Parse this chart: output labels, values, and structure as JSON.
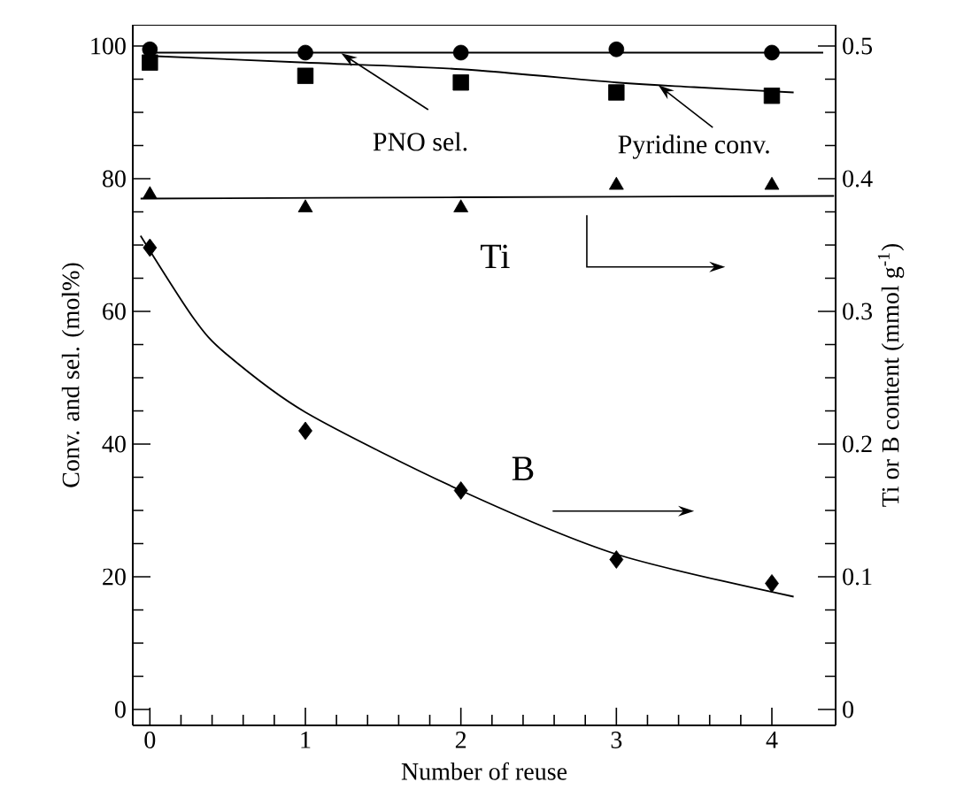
{
  "chart_data": {
    "type": "scatter",
    "xlabel": "Number of reuse",
    "ylabel": "Conv. and sel. (mol%)",
    "y2label": "Ti or B content (mmol g$^{-1}$)",
    "xlim": [
      -0.11,
      4.41
    ],
    "xticks": [
      0,
      1,
      2,
      3,
      4
    ],
    "ylim": [
      -2.4,
      103.2
    ],
    "yticks": [
      0,
      20,
      40,
      60,
      80,
      100
    ],
    "y2lim": [
      -0.012,
      0.516
    ],
    "y2ticks": [
      0,
      0.1,
      0.2,
      0.3,
      0.4,
      0.5
    ],
    "grid": false,
    "series": [
      {
        "marker": "circle",
        "color": "#000000",
        "x": [
          0,
          1,
          2,
          3,
          4
        ],
        "values": [
          99.5,
          99,
          99,
          99.5,
          99
        ]
      },
      {
        "type": "line",
        "marker": "none",
        "color": "#000000",
        "x": [
          0,
          4.33
        ],
        "values": [
          99,
          99
        ]
      },
      {
        "marker": "square",
        "color": "#000000",
        "x": [
          0,
          1,
          2,
          3,
          4
        ],
        "values": [
          97.5,
          95.5,
          94.5,
          93,
          92.5
        ]
      },
      {
        "type": "line",
        "marker": "none",
        "color": "#000000",
        "x": [
          0,
          1,
          2,
          3,
          3.5,
          4.14
        ],
        "values": [
          98.5,
          97.5,
          96.5,
          94.5,
          93.8,
          93
        ]
      },
      {
        "marker": "triangle",
        "color": "#000000",
        "axis": "y2",
        "x": [
          0,
          1,
          2,
          3,
          4
        ],
        "values": [
          0.388,
          0.378,
          0.378,
          0.395,
          0.395
        ]
      },
      {
        "type": "line",
        "marker": "none",
        "color": "#000000",
        "axis": "y2",
        "x": [
          -0.06,
          2,
          4.4
        ],
        "values": [
          0.385,
          0.386,
          0.387
        ]
      },
      {
        "marker": "diamond",
        "color": "#000000",
        "axis": "y2",
        "x": [
          0,
          1,
          2,
          3,
          4
        ],
        "values": [
          0.348,
          0.21,
          0.165,
          0.113,
          0.095
        ]
      },
      {
        "type": "line",
        "marker": "none",
        "color": "#000000",
        "axis": "y2",
        "x": [
          -0.06,
          0.28,
          0.49,
          1,
          2,
          3,
          4.14
        ],
        "values": [
          0.357,
          0.295,
          0.268,
          0.224,
          0.165,
          0.117,
          0.085
        ]
      }
    ],
    "annotations": [
      {
        "text": "PNO sel.",
        "x": 1.23,
        "y": 98.9
      },
      {
        "text": "Pyridine conv.",
        "x": 3.27,
        "y": 94.1
      },
      "Ti",
      "B"
    ]
  }
}
